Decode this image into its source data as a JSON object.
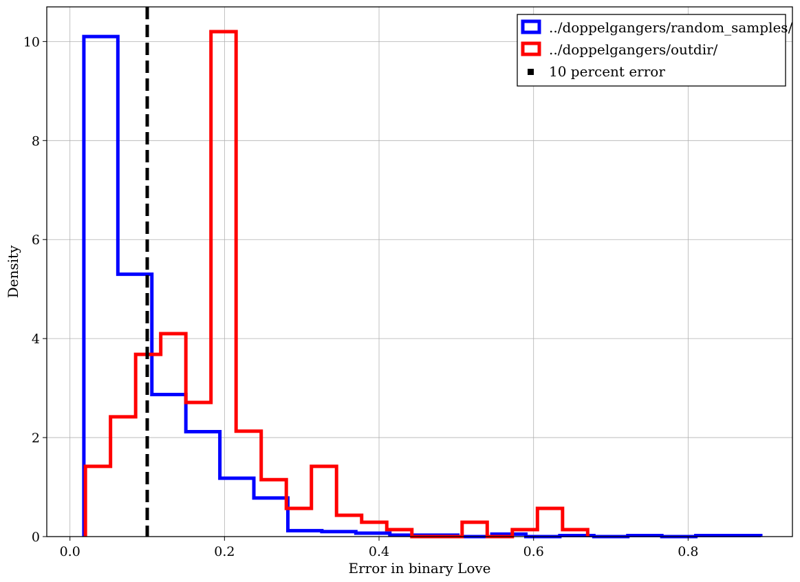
{
  "chart_data": {
    "type": "histogram",
    "xlabel": "Error in binary Love",
    "ylabel": "Density",
    "xlim": [
      -0.03,
      0.935
    ],
    "ylim": [
      0,
      10.7
    ],
    "xticks": [
      0.0,
      0.2,
      0.4,
      0.6,
      0.8
    ],
    "xtick_labels": [
      "0.0",
      "0.2",
      "0.4",
      "0.6",
      "0.8"
    ],
    "yticks": [
      0,
      2,
      4,
      6,
      8,
      10
    ],
    "ytick_labels": [
      "0",
      "2",
      "4",
      "6",
      "8",
      "10"
    ],
    "grid": true,
    "legend_position": "top-right",
    "series": [
      {
        "name": "../doppelgangers/random_samples/",
        "color": "#0000ff",
        "edges": [
          0.018,
          0.062,
          0.106,
          0.15,
          0.194,
          0.238,
          0.282,
          0.326,
          0.37,
          0.414,
          0.458,
          0.502,
          0.546,
          0.59,
          0.634,
          0.678,
          0.722,
          0.766,
          0.81,
          0.854,
          0.894
        ],
        "values": [
          10.1,
          5.3,
          2.87,
          2.12,
          1.18,
          0.78,
          0.12,
          0.1,
          0.07,
          0.03,
          0.03,
          0.0,
          0.05,
          0.0,
          0.02,
          0.0,
          0.02,
          0.0,
          0.02,
          0.02
        ]
      },
      {
        "name": "../doppelgangers/outdir/",
        "color": "#ff0000",
        "edges": [
          0.02,
          0.0525,
          0.085,
          0.1175,
          0.15,
          0.1825,
          0.215,
          0.2475,
          0.28,
          0.3125,
          0.345,
          0.3775,
          0.41,
          0.4425,
          0.475,
          0.5075,
          0.54,
          0.5725,
          0.605,
          0.6375,
          0.67
        ],
        "values": [
          1.42,
          2.42,
          3.68,
          4.1,
          2.71,
          10.2,
          2.13,
          1.15,
          0.57,
          1.42,
          0.43,
          0.29,
          0.14,
          0.0,
          0.0,
          0.29,
          0.0,
          0.14,
          0.57,
          0.14
        ]
      }
    ],
    "reference_line": {
      "name": "10 percent error",
      "x": 0.1,
      "color": "#000000",
      "style": "dashed"
    }
  }
}
